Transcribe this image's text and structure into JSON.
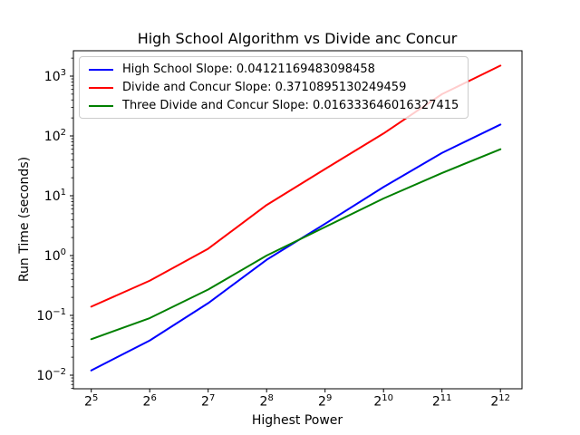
{
  "chart_data": {
    "type": "line",
    "title": "High School Algorithm vs Divide anc Concur",
    "xlabel": "Highest Power",
    "ylabel": "Run Time (seconds)",
    "grid": false,
    "legend_position": "upper left",
    "x_axis": {
      "scale": "log2",
      "tick_base": 2,
      "tick_exponents": [
        5,
        6,
        7,
        8,
        9,
        10,
        11,
        12
      ]
    },
    "y_axis": {
      "scale": "log10",
      "tick_base": 10,
      "tick_exponents": [
        3,
        2,
        1,
        0,
        -1,
        -2
      ],
      "ylim": [
        0.006,
        2600
      ]
    },
    "x_values": [
      32,
      64,
      128,
      256,
      512,
      1024,
      2048,
      4096
    ],
    "series": [
      {
        "name": "High School",
        "legend_label": "High School Slope: 0.04121169483098458",
        "color": "#0000ff",
        "values": [
          0.012,
          0.038,
          0.16,
          0.85,
          3.4,
          14,
          52,
          155
        ]
      },
      {
        "name": "Divide and Concur",
        "legend_label": "Divide and Concur Slope: 0.3710895130249459",
        "color": "#ff0000",
        "values": [
          0.14,
          0.38,
          1.3,
          7,
          28,
          110,
          500,
          1500
        ]
      },
      {
        "name": "Three Divide and Concur",
        "legend_label": "Three Divide and Concur Slope: 0.016333646016327415",
        "color": "#008000",
        "values": [
          0.04,
          0.09,
          0.27,
          1.0,
          3.0,
          9,
          24,
          60
        ]
      }
    ]
  }
}
